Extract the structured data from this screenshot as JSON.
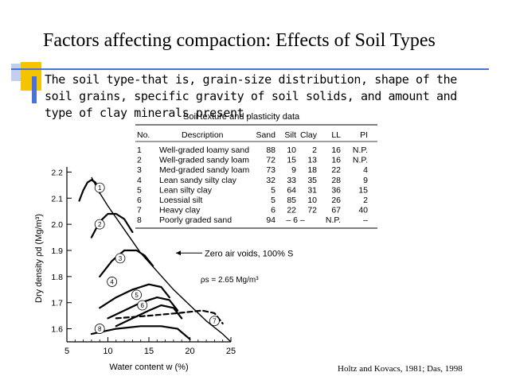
{
  "slide": {
    "title": "Factors affecting compaction: Effects of Soil Types",
    "body": "The soil type-that is, grain-size distribution, shape of the soil grains, specific gravity of soil solids, and amount and type of clay minerals present.",
    "citation": "Holtz and Kovacs, 1981; Das, 1998"
  },
  "table": {
    "title": "Soil texture and plasticity data",
    "headers": [
      "No.",
      "Description",
      "Sand",
      "Silt",
      "Clay",
      "LL",
      "PI"
    ],
    "rows": [
      [
        "1",
        "Well-graded loamy sand",
        "88",
        "10",
        "2",
        "16",
        "N.P."
      ],
      [
        "2",
        "Well-graded sandy loam",
        "72",
        "15",
        "13",
        "16",
        "N.P."
      ],
      [
        "3",
        "Med-graded sandy loam",
        "73",
        "9",
        "18",
        "22",
        "4"
      ],
      [
        "4",
        "Lean sandy silty clay",
        "32",
        "33",
        "35",
        "28",
        "9"
      ],
      [
        "5",
        "Lean silty clay",
        "5",
        "64",
        "31",
        "36",
        "15"
      ],
      [
        "6",
        "Loessial silt",
        "5",
        "85",
        "10",
        "26",
        "2"
      ],
      [
        "7",
        "Heavy clay",
        "6",
        "22",
        "72",
        "67",
        "40"
      ],
      [
        "8",
        "Poorly graded sand",
        "94",
        "– 6 –",
        "",
        "N.P.",
        "–"
      ]
    ]
  },
  "chart_data": {
    "type": "line",
    "xlabel": "Water content w (%)",
    "ylabel": "Dry density ρd (Mg/m³)",
    "xlim": [
      5,
      25
    ],
    "ylim": [
      1.55,
      2.25
    ],
    "xticks": [
      "5",
      "10",
      "15",
      "20",
      "25"
    ],
    "yticks": [
      "1.6",
      "1.7",
      "1.8",
      "1.9",
      "2.0",
      "2.1",
      "2.2"
    ],
    "annotations": [
      "Zero air voids, 100% S",
      "ρs = 2.65 Mg/m³"
    ],
    "series": [
      {
        "name": "1",
        "x": [
          6.5,
          7.0,
          7.5,
          8.0,
          8.5,
          9.0
        ],
        "y": [
          2.09,
          2.13,
          2.16,
          2.17,
          2.16,
          2.12
        ]
      },
      {
        "name": "2",
        "x": [
          8,
          9,
          10,
          11,
          12,
          13
        ],
        "y": [
          1.95,
          2.01,
          2.04,
          2.04,
          2.02,
          1.97
        ]
      },
      {
        "name": "3",
        "x": [
          9,
          10.5,
          12,
          13.5,
          14.5,
          15.5
        ],
        "y": [
          1.8,
          1.86,
          1.9,
          1.9,
          1.88,
          1.84
        ]
      },
      {
        "name": "4",
        "x": [
          9,
          11,
          13,
          15,
          16.5,
          17.5
        ],
        "y": [
          1.68,
          1.72,
          1.75,
          1.77,
          1.76,
          1.72
        ]
      },
      {
        "name": "5",
        "x": [
          10,
          12,
          14,
          16,
          17.5,
          18.5
        ],
        "y": [
          1.64,
          1.67,
          1.7,
          1.72,
          1.71,
          1.67
        ]
      },
      {
        "name": "6",
        "x": [
          11,
          13,
          15,
          16.5,
          18,
          19
        ],
        "y": [
          1.61,
          1.64,
          1.67,
          1.69,
          1.68,
          1.64
        ]
      },
      {
        "name": "7",
        "x": [
          11,
          15,
          18.5,
          21.5,
          23,
          24
        ],
        "y": [
          1.64,
          1.65,
          1.66,
          1.67,
          1.66,
          1.62
        ]
      },
      {
        "name": "8",
        "x": [
          8,
          11,
          14,
          16.5,
          18.5,
          20
        ],
        "y": [
          1.58,
          1.6,
          1.61,
          1.61,
          1.6,
          1.56
        ]
      },
      {
        "name": "Zero air voids",
        "x": [
          8,
          9,
          10,
          12,
          14,
          16,
          18,
          20,
          22,
          24,
          25
        ],
        "y": [
          2.18,
          2.12,
          2.07,
          1.98,
          1.89,
          1.82,
          1.75,
          1.69,
          1.63,
          1.58,
          1.55
        ]
      }
    ]
  }
}
